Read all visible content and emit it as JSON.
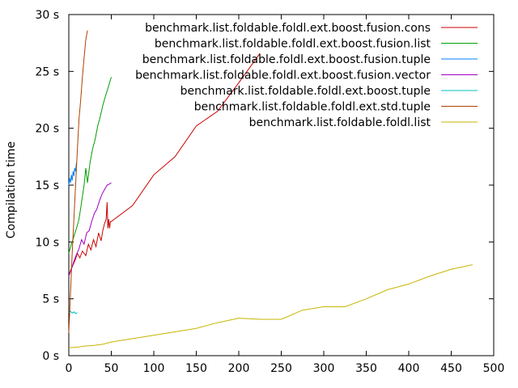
{
  "chart_data": {
    "type": "line",
    "title": "",
    "xlabel": "",
    "ylabel": "Compilation time",
    "xlim": [
      0,
      500
    ],
    "ylim": [
      0,
      30
    ],
    "x_ticks": [
      0,
      50,
      100,
      150,
      200,
      250,
      300,
      350,
      400,
      450,
      500
    ],
    "y_ticks": [
      {
        "value": 0,
        "label": "0 s"
      },
      {
        "value": 5,
        "label": "5 s"
      },
      {
        "value": 10,
        "label": "10 s"
      },
      {
        "value": 15,
        "label": "15 s"
      },
      {
        "value": 20,
        "label": "20 s"
      },
      {
        "value": 25,
        "label": "25 s"
      },
      {
        "value": 30,
        "label": "30 s"
      }
    ],
    "grid": false,
    "legend_position": "top-right",
    "series": [
      {
        "name": "benchmark.list.foldable.foldl.ext.boost.fusion.cons",
        "color": "#cc0000",
        "x": [
          0,
          2,
          5,
          8,
          10,
          13,
          16,
          20,
          23,
          26,
          29,
          32,
          35,
          38,
          40,
          42,
          44,
          45,
          46,
          47,
          48,
          49,
          50,
          75,
          100,
          125,
          150,
          175,
          200,
          225
        ],
        "y": [
          7.0,
          7.5,
          8.0,
          8.5,
          9.0,
          8.6,
          9.2,
          8.8,
          9.8,
          9.3,
          10.2,
          9.6,
          10.8,
          10.1,
          11.0,
          11.6,
          12.0,
          13.5,
          11.2,
          12.0,
          11.2,
          11.8,
          11.8,
          13.2,
          15.9,
          17.5,
          20.2,
          21.5,
          24.0,
          26.6
        ]
      },
      {
        "name": "benchmark.list.foldable.foldl.ext.boost.fusion.list",
        "color": "#00a000",
        "x": [
          0,
          3,
          6,
          9,
          12,
          15,
          18,
          20,
          22,
          25,
          28,
          31,
          34,
          37,
          40,
          43,
          46,
          48,
          50
        ],
        "y": [
          9.0,
          9.8,
          10.5,
          11.2,
          12.0,
          13.5,
          15.0,
          16.5,
          15.2,
          17.0,
          18.2,
          19.0,
          20.2,
          21.0,
          22.0,
          22.8,
          23.5,
          24.0,
          24.5
        ]
      },
      {
        "name": "benchmark.list.foldable.foldl.ext.boost.fusion.tuple",
        "color": "#0080ff",
        "x": [
          0,
          1,
          2,
          3,
          4,
          5,
          6,
          7,
          8,
          9
        ],
        "y": [
          15.0,
          15.6,
          15.2,
          15.9,
          15.4,
          16.2,
          15.8,
          16.5,
          16.2,
          17.0
        ]
      },
      {
        "name": "benchmark.list.foldable.foldl.ext.boost.fusion.vector",
        "color": "#a000c0",
        "x": [
          0,
          3,
          6,
          9,
          12,
          15,
          18,
          21,
          24,
          27,
          30,
          33,
          36,
          39,
          42,
          45,
          48,
          50
        ],
        "y": [
          7.0,
          7.6,
          8.3,
          8.9,
          9.4,
          10.2,
          9.8,
          10.8,
          11.0,
          11.8,
          12.5,
          12.9,
          13.6,
          14.2,
          14.6,
          15.0,
          15.1,
          15.2
        ]
      },
      {
        "name": "benchmark.list.foldable.foldl.ext.boost.tuple",
        "color": "#00c0c0",
        "x": [
          0,
          2,
          4,
          6,
          8,
          10
        ],
        "y": [
          3.8,
          3.9,
          3.75,
          3.85,
          3.7,
          3.8
        ]
      },
      {
        "name": "benchmark.list.foldable.foldl.ext.std.tuple",
        "color": "#b04000",
        "x": [
          0,
          2,
          4,
          6,
          8,
          10,
          12,
          14,
          16,
          18,
          20,
          22
        ],
        "y": [
          2.0,
          5.5,
          9.0,
          12.0,
          15.0,
          18.0,
          20.8,
          22.5,
          24.5,
          26.2,
          27.8,
          28.6
        ]
      },
      {
        "name": "benchmark.list.foldable.foldl.list",
        "color": "#c8b400",
        "x": [
          0,
          10,
          20,
          30,
          40,
          45,
          50,
          75,
          100,
          125,
          150,
          175,
          200,
          225,
          250,
          275,
          300,
          325,
          350,
          375,
          400,
          425,
          450,
          475
        ],
        "y": [
          0.7,
          0.75,
          0.85,
          0.9,
          1.0,
          1.1,
          1.2,
          1.5,
          1.8,
          2.1,
          2.4,
          2.9,
          3.3,
          3.2,
          3.2,
          4.0,
          4.3,
          4.3,
          5.0,
          5.8,
          6.3,
          7.0,
          7.6,
          8.0
        ]
      }
    ]
  }
}
